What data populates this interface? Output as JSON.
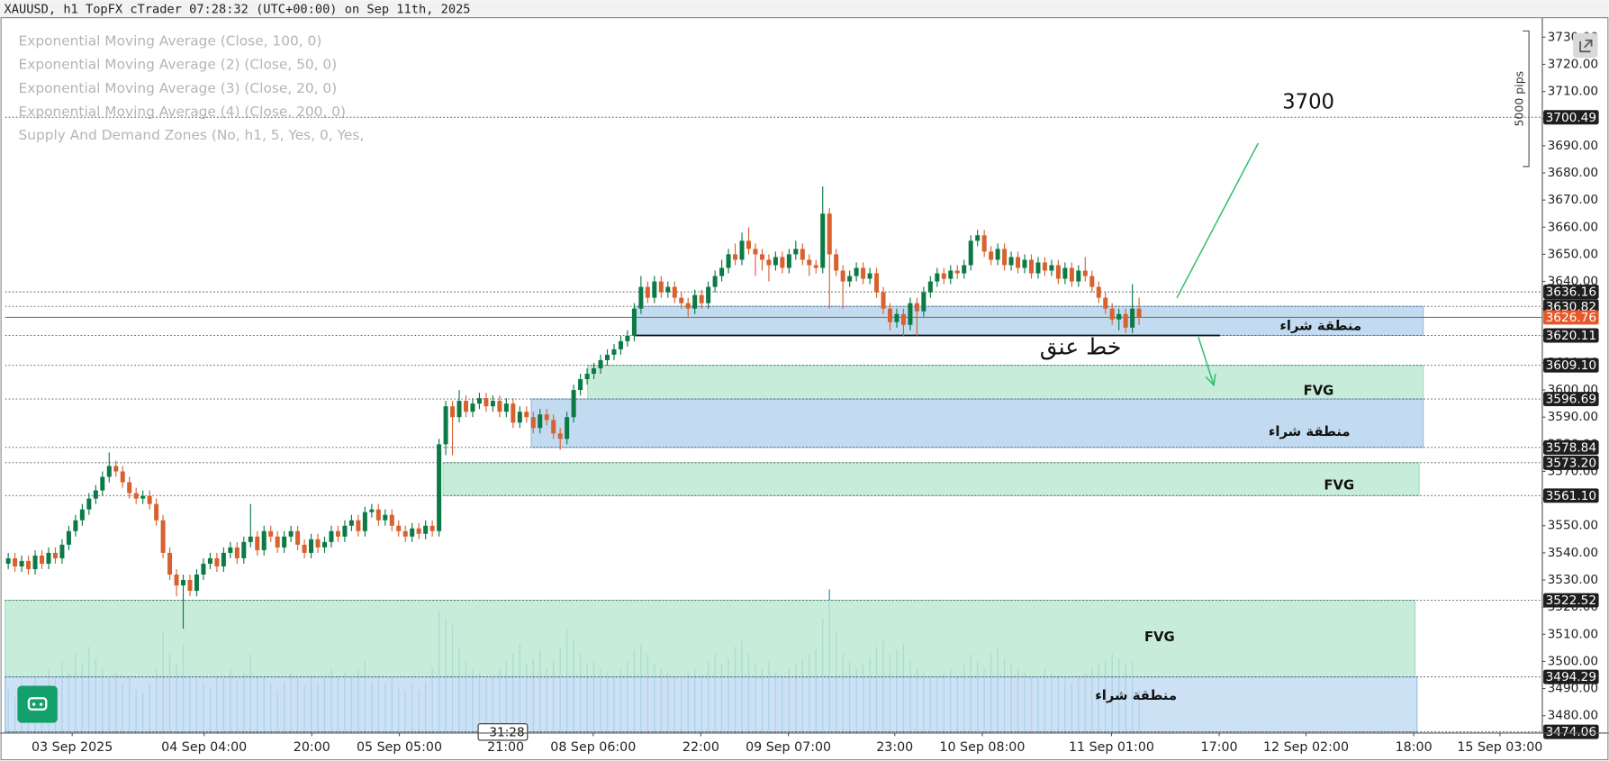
{
  "chart_data": {
    "type": "candlestick",
    "title": "XAUUSD, h1 TopFX cTrader 07:28:32 (UTC+00:00) on Sep 11th, 2025",
    "indicators": [
      "Exponential Moving Average (Close, 100, 0)",
      "Exponential Moving Average (2) (Close, 50, 0)",
      "Exponential Moving Average (3) (Close, 20, 0)",
      "Exponential Moving Average (4) (Close, 200, 0)",
      "Supply And Demand Zones (No, h1, 5, Yes, 0, Yes,"
    ],
    "up_color": "#0b7a45",
    "down_color": "#d8612f",
    "volume_color": "#3d9fc8",
    "xlim": [
      -0.46,
      227.9
    ],
    "ylim": [
      3473.6,
      3737.2
    ],
    "xticks": [
      {
        "value": 9.5,
        "label": "03 Sep 2025"
      },
      {
        "value": 29.1,
        "label": "04 Sep 04:00"
      },
      {
        "value": 45.1,
        "label": "20:00"
      },
      {
        "value": 58.1,
        "label": "05 Sep 05:00"
      },
      {
        "value": 73.9,
        "label": "21:00"
      },
      {
        "value": 86.9,
        "label": "08 Sep 06:00"
      },
      {
        "value": 102.9,
        "label": "22:00"
      },
      {
        "value": 115.9,
        "label": "09 Sep 07:00"
      },
      {
        "value": 131.7,
        "label": "23:00"
      },
      {
        "value": 144.7,
        "label": "10 Sep 08:00"
      },
      {
        "value": 163.9,
        "label": "11 Sep 01:00"
      },
      {
        "value": 179.9,
        "label": "17:00"
      },
      {
        "value": 192.8,
        "label": "12 Sep 02:00"
      },
      {
        "value": 208.8,
        "label": "18:00"
      },
      {
        "value": 221.6,
        "label": "15 Sep 03:00"
      }
    ],
    "yticks": [
      {
        "value": 3480,
        "label": "3480.00"
      },
      {
        "value": 3490,
        "label": "3490.00"
      },
      {
        "value": 3500,
        "label": "3500.00"
      },
      {
        "value": 3510,
        "label": "3510.00"
      },
      {
        "value": 3520,
        "label": "3520.00"
      },
      {
        "value": 3530,
        "label": "3530.00"
      },
      {
        "value": 3540,
        "label": "3540.00"
      },
      {
        "value": 3550,
        "label": "3550.00"
      },
      {
        "value": 3560,
        "label": "3560.00"
      },
      {
        "value": 3570,
        "label": "3570.00"
      },
      {
        "value": 3580,
        "label": "3580.00"
      },
      {
        "value": 3590,
        "label": "3590.00"
      },
      {
        "value": 3600,
        "label": "3600.00"
      },
      {
        "value": 3610,
        "label": "3610.00"
      },
      {
        "value": 3620,
        "label": "3620.00"
      },
      {
        "value": 3630,
        "label": "3630.00"
      },
      {
        "value": 3640,
        "label": "3640.00"
      },
      {
        "value": 3650,
        "label": "3650.00"
      },
      {
        "value": 3660,
        "label": "3660.00"
      },
      {
        "value": 3670,
        "label": "3670.00"
      },
      {
        "value": 3680,
        "label": "3680.00"
      },
      {
        "value": 3690,
        "label": "3690.00"
      },
      {
        "value": 3700,
        "label": "3700.00"
      },
      {
        "value": 3710,
        "label": "3710.00"
      },
      {
        "value": 3720,
        "label": "3720.00"
      },
      {
        "value": 3730,
        "label": "3730.00"
      }
    ],
    "levels": [
      3700.49,
      3636.16,
      3630.82,
      3620.11,
      {
        "value": 3609.1,
        "label": "3609.10"
      },
      3596.69,
      3578.84,
      {
        "value": 3573.2,
        "label": "3573.20"
      },
      {
        "value": 3561.1,
        "label": "3561.10"
      },
      3522.52,
      3494.29,
      3474.06
    ],
    "current_price": 3626.76,
    "current_color": "#e8572a",
    "zones": [
      {
        "label": "منطقة شراء",
        "low": 3620.11,
        "high": 3630.82,
        "start": 93,
        "end": 210.2,
        "color": "#b7d5ee"
      },
      {
        "label": "FVG",
        "low": 3596.69,
        "high": 3609.1,
        "start": 86.1,
        "end": 210.2,
        "color": "#bde9d2"
      },
      {
        "label": "منطقة شراء",
        "low": 3578.84,
        "high": 3596.69,
        "start": 77.7,
        "end": 210.2,
        "color": "#b7d5ee"
      },
      {
        "label": "FVG",
        "low": 3561.1,
        "high": 3573.2,
        "start": 64.6,
        "end": 209.6,
        "color": "#bde9d2"
      },
      {
        "label": "FVG",
        "low": 3494.29,
        "high": 3522.52,
        "start": -0.46,
        "end": 209,
        "color": "#bde9d2"
      },
      {
        "label": "منطقة شراء",
        "low": 3474.06,
        "high": 3494.29,
        "start": -0.46,
        "end": 209.3,
        "color": "#c3dcf2"
      }
    ],
    "neckline": {
      "label": "خط عنق",
      "price": 3620.11,
      "start": 93,
      "end": 180
    },
    "target_label": "3700",
    "arrows": [
      {
        "from": [
          173.6,
          3633.9
        ],
        "to": [
          185.7,
          3691
        ],
        "color": "#2ebd6b"
      },
      {
        "from": [
          176.8,
          3619.6
        ],
        "to": [
          179.1,
          3601.8
        ],
        "color": "#2ebd6b"
      }
    ],
    "measure_label": "5000 pips",
    "countdown": "31:28",
    "ohlc": [
      [
        3536,
        3540,
        3534,
        3538
      ],
      [
        3538,
        3540,
        3533,
        3535
      ],
      [
        3535,
        3539,
        3533,
        3537
      ],
      [
        3537,
        3539,
        3532,
        3534
      ],
      [
        3534,
        3541,
        3532,
        3539
      ],
      [
        3539,
        3541,
        3534,
        3536
      ],
      [
        3536,
        3542,
        3534,
        3540
      ],
      [
        3540,
        3542,
        3536,
        3538
      ],
      [
        3538,
        3545,
        3536,
        3543
      ],
      [
        3543,
        3550,
        3541,
        3548
      ],
      [
        3548,
        3554,
        3546,
        3552
      ],
      [
        3552,
        3558,
        3550,
        3556
      ],
      [
        3556,
        3562,
        3554,
        3560
      ],
      [
        3560,
        3565,
        3558,
        3563
      ],
      [
        3563,
        3570,
        3561,
        3568
      ],
      [
        3568,
        3577,
        3566,
        3572
      ],
      [
        3572,
        3574,
        3568,
        3570
      ],
      [
        3570,
        3572,
        3564,
        3566
      ],
      [
        3566,
        3568,
        3560,
        3562
      ],
      [
        3562,
        3564,
        3558,
        3560
      ],
      [
        3560,
        3563,
        3558,
        3561
      ],
      [
        3561,
        3563,
        3556,
        3558
      ],
      [
        3558,
        3560,
        3550,
        3552
      ],
      [
        3552,
        3554,
        3538,
        3540
      ],
      [
        3540,
        3542,
        3530,
        3532
      ],
      [
        3532,
        3534,
        3524,
        3528
      ],
      [
        3528,
        3532,
        3512,
        3530
      ],
      [
        3530,
        3532,
        3524,
        3526
      ],
      [
        3526,
        3534,
        3524,
        3532
      ],
      [
        3532,
        3538,
        3530,
        3536
      ],
      [
        3536,
        3540,
        3534,
        3538
      ],
      [
        3538,
        3540,
        3533,
        3535
      ],
      [
        3535,
        3542,
        3533,
        3540
      ],
      [
        3540,
        3544,
        3538,
        3542
      ],
      [
        3542,
        3544,
        3536,
        3538
      ],
      [
        3538,
        3546,
        3536,
        3544
      ],
      [
        3544,
        3558,
        3542,
        3546
      ],
      [
        3546,
        3548,
        3539,
        3541
      ],
      [
        3541,
        3550,
        3539,
        3548
      ],
      [
        3548,
        3550,
        3544,
        3546
      ],
      [
        3546,
        3548,
        3540,
        3542
      ],
      [
        3542,
        3548,
        3540,
        3546
      ],
      [
        3546,
        3550,
        3544,
        3548
      ],
      [
        3548,
        3550,
        3541,
        3543
      ],
      [
        3543,
        3545,
        3538,
        3540
      ],
      [
        3540,
        3547,
        3538,
        3545
      ],
      [
        3545,
        3547,
        3540,
        3542
      ],
      [
        3542,
        3546,
        3540,
        3544
      ],
      [
        3544,
        3550,
        3542,
        3548
      ],
      [
        3548,
        3550,
        3544,
        3546
      ],
      [
        3546,
        3552,
        3544,
        3550
      ],
      [
        3550,
        3554,
        3548,
        3552
      ],
      [
        3552,
        3554,
        3546,
        3548
      ],
      [
        3548,
        3557,
        3546,
        3555
      ],
      [
        3555,
        3558,
        3553,
        3556
      ],
      [
        3556,
        3558,
        3550,
        3552
      ],
      [
        3552,
        3556,
        3550,
        3554
      ],
      [
        3554,
        3556,
        3548,
        3550
      ],
      [
        3550,
        3552,
        3546,
        3548
      ],
      [
        3548,
        3550,
        3544,
        3546
      ],
      [
        3546,
        3551,
        3544,
        3549
      ],
      [
        3549,
        3551,
        3545,
        3547
      ],
      [
        3547,
        3552,
        3545,
        3550
      ],
      [
        3550,
        3552,
        3546,
        3548
      ],
      [
        3548,
        3582,
        3546,
        3580
      ],
      [
        3580,
        3596,
        3576,
        3594
      ],
      [
        3594,
        3596,
        3576,
        3590
      ],
      [
        3590,
        3600,
        3588,
        3596
      ],
      [
        3596,
        3598,
        3590,
        3592
      ],
      [
        3592,
        3597,
        3590,
        3595
      ],
      [
        3595,
        3599,
        3593,
        3597
      ],
      [
        3597,
        3599,
        3592,
        3594
      ],
      [
        3594,
        3598,
        3592,
        3596
      ],
      [
        3596,
        3598,
        3590,
        3592
      ],
      [
        3592,
        3597,
        3590,
        3595
      ],
      [
        3595,
        3597,
        3586,
        3588
      ],
      [
        3588,
        3594,
        3586,
        3592
      ],
      [
        3592,
        3594,
        3588,
        3590
      ],
      [
        3590,
        3592,
        3584,
        3586
      ],
      [
        3586,
        3593,
        3584,
        3591
      ],
      [
        3591,
        3593,
        3587,
        3589
      ],
      [
        3589,
        3591,
        3582,
        3584
      ],
      [
        3584,
        3586,
        3578,
        3582
      ],
      [
        3582,
        3592,
        3580,
        3590
      ],
      [
        3590,
        3602,
        3588,
        3600
      ],
      [
        3600,
        3606,
        3598,
        3604
      ],
      [
        3604,
        3608,
        3602,
        3606
      ],
      [
        3606,
        3610,
        3604,
        3608
      ],
      [
        3608,
        3613,
        3606,
        3611
      ],
      [
        3611,
        3615,
        3609,
        3613
      ],
      [
        3613,
        3617,
        3611,
        3615
      ],
      [
        3615,
        3620,
        3613,
        3618
      ],
      [
        3618,
        3622,
        3616,
        3620
      ],
      [
        3620,
        3632,
        3618,
        3630
      ],
      [
        3630,
        3642,
        3628,
        3638
      ],
      [
        3638,
        3640,
        3632,
        3634
      ],
      [
        3634,
        3642,
        3632,
        3640
      ],
      [
        3640,
        3642,
        3634,
        3636
      ],
      [
        3636,
        3640,
        3634,
        3638
      ],
      [
        3638,
        3640,
        3632,
        3634
      ],
      [
        3634,
        3636,
        3630,
        3632
      ],
      [
        3632,
        3634,
        3627,
        3630
      ],
      [
        3630,
        3637,
        3628,
        3635
      ],
      [
        3635,
        3637,
        3630,
        3632
      ],
      [
        3632,
        3640,
        3630,
        3638
      ],
      [
        3638,
        3644,
        3636,
        3642
      ],
      [
        3642,
        3648,
        3640,
        3645
      ],
      [
        3645,
        3652,
        3643,
        3650
      ],
      [
        3650,
        3654,
        3646,
        3648
      ],
      [
        3648,
        3658,
        3646,
        3655
      ],
      [
        3655,
        3660,
        3650,
        3652
      ],
      [
        3652,
        3654,
        3642,
        3650
      ],
      [
        3650,
        3652,
        3644,
        3648
      ],
      [
        3648,
        3650,
        3640,
        3646
      ],
      [
        3646,
        3651,
        3644,
        3649
      ],
      [
        3649,
        3651,
        3643,
        3645
      ],
      [
        3645,
        3652,
        3643,
        3650
      ],
      [
        3650,
        3655,
        3648,
        3652
      ],
      [
        3652,
        3654,
        3646,
        3648
      ],
      [
        3648,
        3650,
        3642,
        3646
      ],
      [
        3646,
        3648,
        3643,
        3645
      ],
      [
        3645,
        3675,
        3643,
        3665
      ],
      [
        3665,
        3667,
        3630,
        3650
      ],
      [
        3650,
        3652,
        3642,
        3644
      ],
      [
        3644,
        3646,
        3630,
        3640
      ],
      [
        3640,
        3644,
        3638,
        3642
      ],
      [
        3642,
        3647,
        3640,
        3645
      ],
      [
        3645,
        3647,
        3639,
        3641
      ],
      [
        3641,
        3645,
        3639,
        3643
      ],
      [
        3643,
        3645,
        3634,
        3636
      ],
      [
        3636,
        3638,
        3628,
        3630
      ],
      [
        3630,
        3632,
        3622,
        3625
      ],
      [
        3625,
        3630,
        3623,
        3628
      ],
      [
        3628,
        3630,
        3620,
        3624
      ],
      [
        3624,
        3634,
        3622,
        3632
      ],
      [
        3632,
        3634,
        3620,
        3629
      ],
      [
        3629,
        3638,
        3627,
        3636
      ],
      [
        3636,
        3642,
        3634,
        3640
      ],
      [
        3640,
        3645,
        3638,
        3643
      ],
      [
        3643,
        3645,
        3639,
        3641
      ],
      [
        3641,
        3646,
        3639,
        3644
      ],
      [
        3644,
        3646,
        3641,
        3643
      ],
      [
        3643,
        3648,
        3641,
        3646
      ],
      [
        3646,
        3657,
        3644,
        3655
      ],
      [
        3655,
        3659,
        3653,
        3657
      ],
      [
        3657,
        3659,
        3649,
        3651
      ],
      [
        3651,
        3653,
        3646,
        3648
      ],
      [
        3648,
        3654,
        3646,
        3652
      ],
      [
        3652,
        3654,
        3644,
        3646
      ],
      [
        3646,
        3651,
        3644,
        3649
      ],
      [
        3649,
        3651,
        3643,
        3645
      ],
      [
        3645,
        3650,
        3643,
        3648
      ],
      [
        3648,
        3650,
        3641,
        3643
      ],
      [
        3643,
        3649,
        3641,
        3647
      ],
      [
        3647,
        3649,
        3642,
        3644
      ],
      [
        3644,
        3648,
        3642,
        3646
      ],
      [
        3646,
        3648,
        3639,
        3641
      ],
      [
        3641,
        3647,
        3639,
        3645
      ],
      [
        3645,
        3647,
        3638,
        3640
      ],
      [
        3640,
        3646,
        3638,
        3644
      ],
      [
        3644,
        3649,
        3640,
        3642
      ],
      [
        3642,
        3644,
        3636,
        3638
      ],
      [
        3638,
        3640,
        3632,
        3634
      ],
      [
        3634,
        3636,
        3628,
        3630
      ],
      [
        3630,
        3632,
        3624,
        3626
      ],
      [
        3626,
        3630,
        3622,
        3628
      ],
      [
        3628,
        3630,
        3621,
        3623
      ],
      [
        3623,
        3639,
        3621,
        3630
      ],
      [
        3630,
        3634,
        3624,
        3626.76
      ]
    ],
    "volume": [
      30,
      25,
      35,
      28,
      40,
      33,
      45,
      38,
      50,
      42,
      55,
      48,
      60,
      52,
      45,
      38,
      42,
      35,
      40,
      30,
      28,
      35,
      45,
      70,
      55,
      48,
      62,
      40,
      38,
      35,
      32,
      40,
      38,
      45,
      36,
      42,
      55,
      40,
      38,
      35,
      30,
      36,
      42,
      38,
      33,
      40,
      35,
      38,
      45,
      40,
      42,
      38,
      45,
      50,
      36,
      40,
      35,
      38,
      32,
      30,
      34,
      30,
      36,
      45,
      85,
      80,
      75,
      60,
      50,
      45,
      42,
      38,
      40,
      45,
      50,
      55,
      62,
      48,
      52,
      58,
      45,
      50,
      60,
      72,
      65,
      55,
      48,
      50,
      45,
      42,
      40,
      45,
      50,
      58,
      62,
      55,
      48,
      45,
      42,
      40,
      38,
      42,
      45,
      40,
      50,
      55,
      48,
      52,
      60,
      65,
      55,
      48,
      45,
      50,
      42,
      40,
      45,
      48,
      52,
      55,
      58,
      80,
      100,
      70,
      55,
      50,
      45,
      48,
      52,
      60,
      65,
      55,
      58,
      62,
      50,
      45,
      42,
      40,
      38,
      42,
      45,
      40,
      48,
      55,
      50,
      45,
      55,
      60,
      52,
      48,
      45,
      42,
      40,
      38,
      45,
      42,
      40,
      38,
      35,
      40,
      42,
      45,
      48,
      50,
      55,
      52,
      48,
      50,
      30
    ]
  }
}
